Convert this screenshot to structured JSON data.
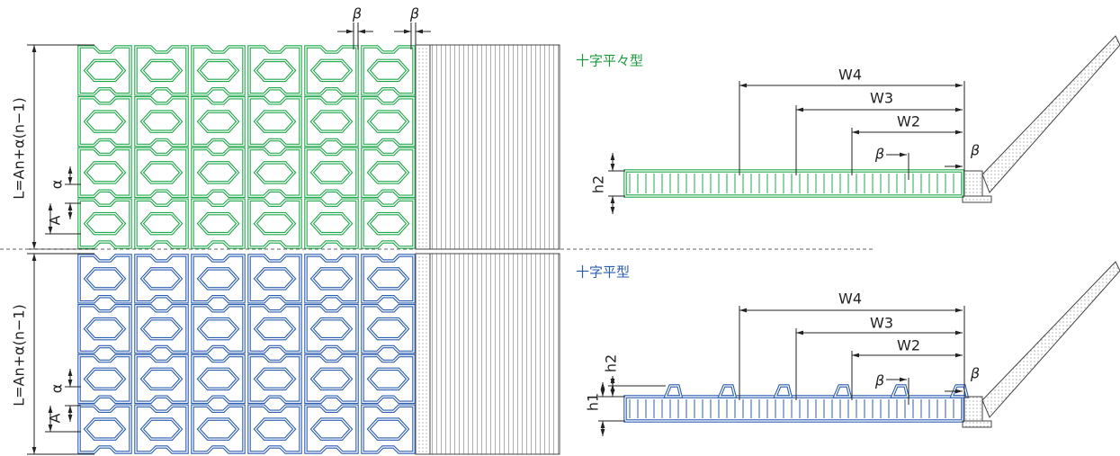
{
  "top_plan": {
    "dim_length": "L=An+α(n−1)",
    "alpha": "α",
    "a": "A",
    "beta_left": "β",
    "beta_right": "β"
  },
  "top_section": {
    "title": "十字平々型",
    "w4": "W4",
    "w3": "W3",
    "w2": "W2",
    "beta_mid": "β",
    "beta_end": "β",
    "h2": "h2"
  },
  "bottom_plan": {
    "dim_length": "L=An+α(n−1)",
    "alpha": "α",
    "a": "A"
  },
  "bottom_section": {
    "title": "十字平型",
    "w4": "W4",
    "w3": "W3",
    "w2": "W2",
    "beta_mid": "β",
    "beta_end": "β",
    "h2": "h2",
    "h1": "h1"
  }
}
